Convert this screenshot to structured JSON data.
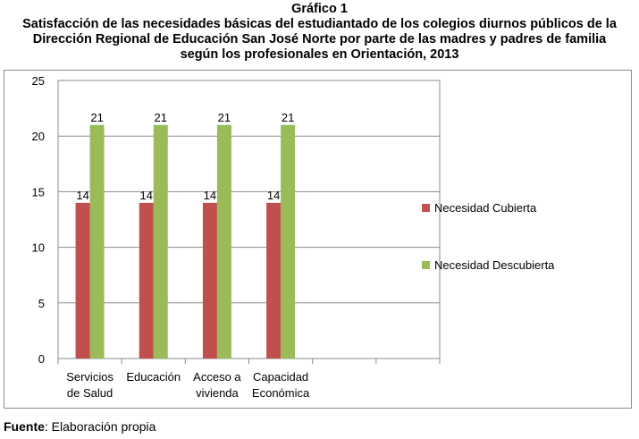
{
  "figure": {
    "title": "Gráfico 1",
    "description": "Satisfacción de las necesidades básicas del estudiantado de los colegios diurnos públicos de la Dirección Regional de Educación San José Norte por parte de las madres y padres de familia según los profesionales en Orientación, 2013"
  },
  "source": {
    "label": "Fuente",
    "text": ": Elaboración propia"
  },
  "chart_data": {
    "type": "bar",
    "categories": [
      [
        "Servicios",
        "de Salud"
      ],
      [
        "Educación"
      ],
      [
        "Acceso a",
        "vivienda"
      ],
      [
        "Capacidad",
        "Económica"
      ],
      [
        ""
      ],
      [
        ""
      ]
    ],
    "series": [
      {
        "name": "Necesidad  Cubierta",
        "values": [
          14,
          14,
          14,
          14,
          null,
          null
        ],
        "color": "#c0504d"
      },
      {
        "name": "Necesidad Descubierta",
        "values": [
          21,
          21,
          21,
          21,
          null,
          null
        ],
        "color": "#9bbb59"
      }
    ],
    "ylim": [
      0,
      25
    ],
    "yticks": [
      0,
      5,
      10,
      15,
      20,
      25
    ],
    "grid": true,
    "legend_position": "right",
    "data_labels": true
  }
}
